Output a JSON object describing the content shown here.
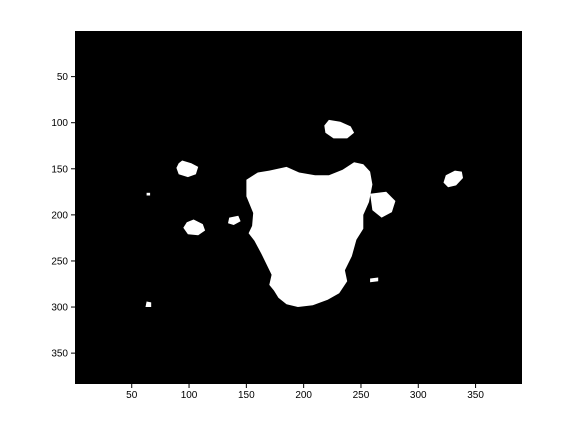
{
  "image_view": {
    "axes": {
      "x_ticks": [
        {
          "value": 50,
          "label": "50"
        },
        {
          "value": 100,
          "label": "100"
        },
        {
          "value": 150,
          "label": "150"
        },
        {
          "value": 200,
          "label": "200"
        },
        {
          "value": 250,
          "label": "250"
        },
        {
          "value": 300,
          "label": "300"
        },
        {
          "value": 350,
          "label": "350"
        }
      ],
      "y_ticks": [
        {
          "value": 50,
          "label": "50"
        },
        {
          "value": 100,
          "label": "100"
        },
        {
          "value": 150,
          "label": "150"
        },
        {
          "value": 200,
          "label": "200"
        },
        {
          "value": 250,
          "label": "250"
        },
        {
          "value": 300,
          "label": "300"
        },
        {
          "value": 350,
          "label": "350"
        }
      ],
      "xlim": [
        0.5,
        390.5
      ],
      "ylim": [
        0.5,
        383.5
      ]
    },
    "colors": {
      "background": "#000000",
      "foreground": "#ffffff",
      "figure": "#ffffff"
    },
    "blobs": [
      {
        "name": "main-blob",
        "pts": [
          [
            185,
            148
          ],
          [
            196,
            154
          ],
          [
            210,
            157
          ],
          [
            222,
            157
          ],
          [
            234,
            151
          ],
          [
            244,
            143
          ],
          [
            252,
            145
          ],
          [
            258,
            153
          ],
          [
            260,
            167
          ],
          [
            257,
            186
          ],
          [
            252,
            200
          ],
          [
            252,
            215
          ],
          [
            246,
            227
          ],
          [
            242,
            245
          ],
          [
            236,
            260
          ],
          [
            238,
            272
          ],
          [
            231,
            285
          ],
          [
            221,
            292
          ],
          [
            208,
            298
          ],
          [
            195,
            300
          ],
          [
            185,
            297
          ],
          [
            178,
            290
          ],
          [
            174,
            282
          ],
          [
            170,
            276
          ],
          [
            172,
            265
          ],
          [
            163,
            242
          ],
          [
            157,
            228
          ],
          [
            152,
            220
          ],
          [
            155,
            212
          ],
          [
            156,
            198
          ],
          [
            150,
            180
          ],
          [
            150,
            162
          ],
          [
            160,
            154
          ],
          [
            170,
            152
          ]
        ]
      },
      {
        "name": "top-blob",
        "pts": [
          [
            222,
            97
          ],
          [
            232,
            99
          ],
          [
            241,
            104
          ],
          [
            244,
            111
          ],
          [
            238,
            117
          ],
          [
            226,
            117
          ],
          [
            219,
            111
          ],
          [
            218,
            103
          ]
        ]
      },
      {
        "name": "left-upper-blob",
        "pts": [
          [
            94,
            141
          ],
          [
            102,
            144
          ],
          [
            108,
            148
          ],
          [
            106,
            156
          ],
          [
            99,
            159
          ],
          [
            91,
            156
          ],
          [
            89,
            149
          ],
          [
            91,
            144
          ]
        ]
      },
      {
        "name": "left-lower-blob",
        "pts": [
          [
            104,
            205
          ],
          [
            112,
            210
          ],
          [
            114,
            217
          ],
          [
            108,
            222
          ],
          [
            99,
            221
          ],
          [
            95,
            214
          ],
          [
            98,
            208
          ]
        ]
      },
      {
        "name": "right-blob",
        "pts": [
          [
            332,
            152
          ],
          [
            338,
            153
          ],
          [
            339,
            160
          ],
          [
            333,
            168
          ],
          [
            326,
            170
          ],
          [
            322,
            165
          ],
          [
            324,
            157
          ]
        ]
      },
      {
        "name": "small-left-blob",
        "pts": [
          [
            135,
            203
          ],
          [
            143,
            201
          ],
          [
            145,
            207
          ],
          [
            139,
            211
          ],
          [
            134,
            209
          ]
        ]
      },
      {
        "name": "right-side-fragment",
        "pts": [
          [
            258,
            177
          ],
          [
            272,
            175
          ],
          [
            280,
            185
          ],
          [
            277,
            197
          ],
          [
            268,
            203
          ],
          [
            260,
            195
          ]
        ]
      },
      {
        "name": "small-speck-bottom-left",
        "pts": [
          [
            63,
            294
          ],
          [
            67,
            295
          ],
          [
            67,
            300
          ],
          [
            62,
            300
          ]
        ]
      },
      {
        "name": "small-speck-right",
        "pts": [
          [
            258,
            269
          ],
          [
            265,
            268
          ],
          [
            265,
            272
          ],
          [
            258,
            273
          ]
        ]
      },
      {
        "name": "small-speck-left",
        "pts": [
          [
            63,
            176
          ],
          [
            66,
            176
          ],
          [
            66,
            179
          ],
          [
            63,
            179
          ]
        ]
      }
    ]
  }
}
